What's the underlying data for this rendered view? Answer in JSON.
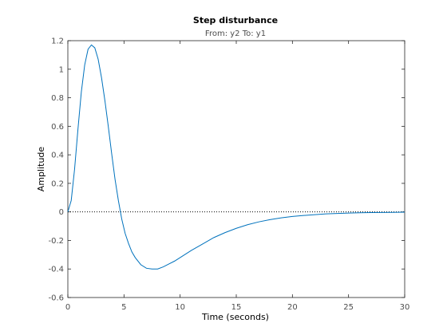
{
  "chart_data": {
    "type": "line",
    "title": "Step disturbance",
    "subtitle": "From: y2  To: y1",
    "xlabel": "Time (seconds)",
    "ylabel": "Amplitude",
    "xlim": [
      0,
      30
    ],
    "ylim": [
      -0.6,
      1.2
    ],
    "xticks": [
      0,
      5,
      10,
      15,
      20,
      25,
      30
    ],
    "yticks": [
      -0.6,
      -0.4,
      -0.2,
      0,
      0.2,
      0.4,
      0.6,
      0.8,
      1,
      1.2
    ],
    "xtick_labels": [
      "0",
      "5",
      "10",
      "15",
      "20",
      "25",
      "30"
    ],
    "ytick_labels": [
      "-0.6",
      "-0.4",
      "-0.2",
      "0",
      "0.2",
      "0.4",
      "0.6",
      "0.8",
      "1",
      "1.2"
    ],
    "grid": false,
    "reference_line": {
      "y": 0,
      "style": "dotted",
      "color": "#000000"
    },
    "series": [
      {
        "color": "#0072bd",
        "x": [
          0,
          0.3,
          0.6,
          0.9,
          1.2,
          1.5,
          1.8,
          2.1,
          2.4,
          2.7,
          3.0,
          3.3,
          3.6,
          3.9,
          4.2,
          4.5,
          4.8,
          5.1,
          5.4,
          5.7,
          6.0,
          6.5,
          7.0,
          7.5,
          8.0,
          8.5,
          9.0,
          9.5,
          10,
          11,
          12,
          13,
          14,
          15,
          16,
          17,
          18,
          19,
          20,
          21,
          22,
          23,
          24,
          25,
          26,
          27,
          28,
          29,
          30
        ],
        "y": [
          0,
          0.08,
          0.3,
          0.58,
          0.84,
          1.03,
          1.14,
          1.17,
          1.15,
          1.07,
          0.94,
          0.78,
          0.6,
          0.41,
          0.23,
          0.08,
          -0.05,
          -0.15,
          -0.22,
          -0.28,
          -0.32,
          -0.37,
          -0.395,
          -0.4,
          -0.4,
          -0.385,
          -0.365,
          -0.345,
          -0.32,
          -0.27,
          -0.225,
          -0.18,
          -0.145,
          -0.115,
          -0.09,
          -0.07,
          -0.054,
          -0.042,
          -0.032,
          -0.025,
          -0.019,
          -0.014,
          -0.011,
          -0.008,
          -0.006,
          -0.005,
          -0.004,
          -0.003,
          -0.002
        ]
      }
    ]
  }
}
